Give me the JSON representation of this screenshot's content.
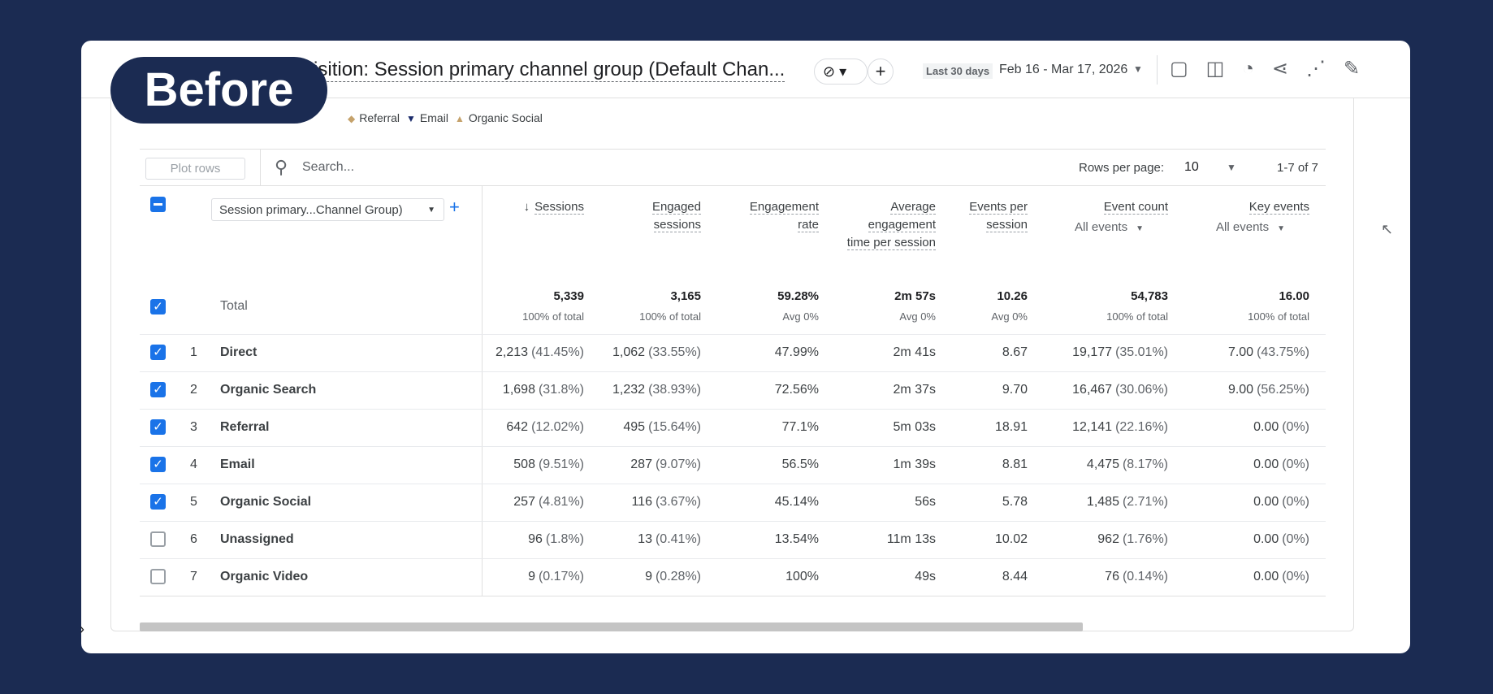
{
  "header": {
    "title": "Traffic acquisition: Session primary channel group (Default Chan...",
    "badge": "Before",
    "date_label": "Last 30 days",
    "date_range": "Feb 16 - Mar 17, 2026"
  },
  "legend": [
    "Referral",
    "Email",
    "Organic Social"
  ],
  "toolbar": {
    "plot_rows": "Plot rows",
    "search": "Search...",
    "rows_per_page": "Rows per page:",
    "rows_value": "10",
    "pagination": "1-7 of 7"
  },
  "table": {
    "dimension": "Session primary...Channel Group)",
    "columns": [
      {
        "label": "Sessions"
      },
      {
        "label": "Engaged sessions"
      },
      {
        "label": "Engagement rate"
      },
      {
        "label": "Average engagement time per session"
      },
      {
        "label": "Events per session"
      },
      {
        "label": "Event count",
        "filter": "All events"
      },
      {
        "label": "Key events",
        "filter": "All events"
      }
    ],
    "total": {
      "label": "Total",
      "values": [
        "5,339",
        "3,165",
        "59.28%",
        "2m 57s",
        "10.26",
        "54,783",
        "16.00"
      ],
      "subs": [
        "100% of total",
        "100% of total",
        "Avg 0%",
        "Avg 0%",
        "Avg 0%",
        "100% of total",
        "100% of total"
      ]
    },
    "rows": [
      {
        "num": "1",
        "checked": true,
        "name": "Direct",
        "cells": [
          [
            "2,213",
            "(41.45%)"
          ],
          [
            "1,062",
            "(33.55%)"
          ],
          [
            "47.99%"
          ],
          [
            "2m 41s"
          ],
          [
            "8.67"
          ],
          [
            "19,177",
            "(35.01%)"
          ],
          [
            "7.00",
            "(43.75%)"
          ]
        ]
      },
      {
        "num": "2",
        "checked": true,
        "name": "Organic Search",
        "cells": [
          [
            "1,698",
            "(31.8%)"
          ],
          [
            "1,232",
            "(38.93%)"
          ],
          [
            "72.56%"
          ],
          [
            "2m 37s"
          ],
          [
            "9.70"
          ],
          [
            "16,467",
            "(30.06%)"
          ],
          [
            "9.00",
            "(56.25%)"
          ]
        ]
      },
      {
        "num": "3",
        "checked": true,
        "name": "Referral",
        "cells": [
          [
            "642",
            "(12.02%)"
          ],
          [
            "495",
            "(15.64%)"
          ],
          [
            "77.1%"
          ],
          [
            "5m 03s"
          ],
          [
            "18.91"
          ],
          [
            "12,141",
            "(22.16%)"
          ],
          [
            "0.00",
            "(0%)"
          ]
        ]
      },
      {
        "num": "4",
        "checked": true,
        "name": "Email",
        "cells": [
          [
            "508",
            "(9.51%)"
          ],
          [
            "287",
            "(9.07%)"
          ],
          [
            "56.5%"
          ],
          [
            "1m 39s"
          ],
          [
            "8.81"
          ],
          [
            "4,475",
            "(8.17%)"
          ],
          [
            "0.00",
            "(0%)"
          ]
        ]
      },
      {
        "num": "5",
        "checked": true,
        "name": "Organic Social",
        "cells": [
          [
            "257",
            "(4.81%)"
          ],
          [
            "116",
            "(3.67%)"
          ],
          [
            "45.14%"
          ],
          [
            "56s"
          ],
          [
            "5.78"
          ],
          [
            "1,485",
            "(2.71%)"
          ],
          [
            "0.00",
            "(0%)"
          ]
        ]
      },
      {
        "num": "6",
        "checked": false,
        "name": "Unassigned",
        "cells": [
          [
            "96",
            "(1.8%)"
          ],
          [
            "13",
            "(0.41%)"
          ],
          [
            "13.54%"
          ],
          [
            "11m 13s"
          ],
          [
            "10.02"
          ],
          [
            "962",
            "(1.76%)"
          ],
          [
            "0.00",
            "(0%)"
          ]
        ]
      },
      {
        "num": "7",
        "checked": false,
        "name": "Organic Video",
        "cells": [
          [
            "9",
            "(0.17%)"
          ],
          [
            "9",
            "(0.28%)"
          ],
          [
            "100%"
          ],
          [
            "49s"
          ],
          [
            "8.44"
          ],
          [
            "76",
            "(0.14%)"
          ],
          [
            "0.00",
            "(0%)"
          ]
        ]
      }
    ]
  }
}
